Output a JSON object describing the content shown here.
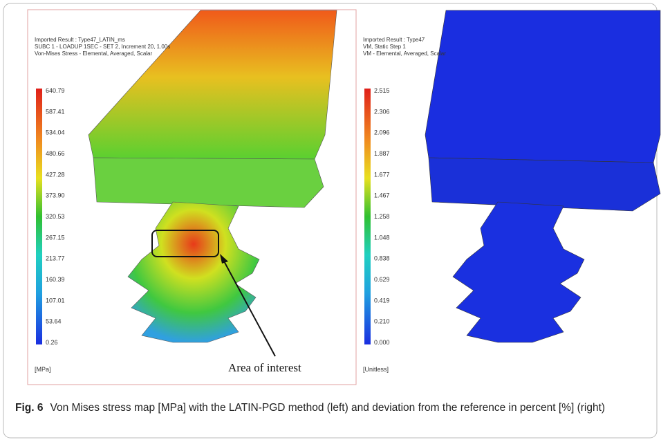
{
  "left_panel": {
    "header": [
      "Imported Result : Type47_LATIN_ms",
      "SUBC 1 - LOADUP 1SEC - SET 2, Increment 20, 1.00s",
      "Von-Mises Stress - Elemental, Averaged, Scalar"
    ],
    "colorbar_labels": [
      "640.79",
      "587.41",
      "534.04",
      "480.66",
      "427.28",
      "373.90",
      "320.53",
      "267.15",
      "213.77",
      "160.39",
      "107.01",
      "53.64",
      "0.26"
    ],
    "unit": "[MPa]",
    "annotation": "Area of interest"
  },
  "right_panel": {
    "header": [
      "Imported Result : Type47",
      "VM, Static Step 1",
      "VM - Elemental, Averaged, Scalar"
    ],
    "colorbar_labels": [
      "2.515",
      "2.306",
      "2.096",
      "1.887",
      "1.677",
      "1.467",
      "1.258",
      "1.048",
      "0.838",
      "0.629",
      "0.419",
      "0.210",
      "0.000"
    ],
    "unit": "[Unitless]"
  },
  "caption": {
    "label": "Fig. 6",
    "text": "Von Mises stress map [MPa] with the LATIN-PGD method (left) and deviation from the reference in percent [%] (right)"
  }
}
